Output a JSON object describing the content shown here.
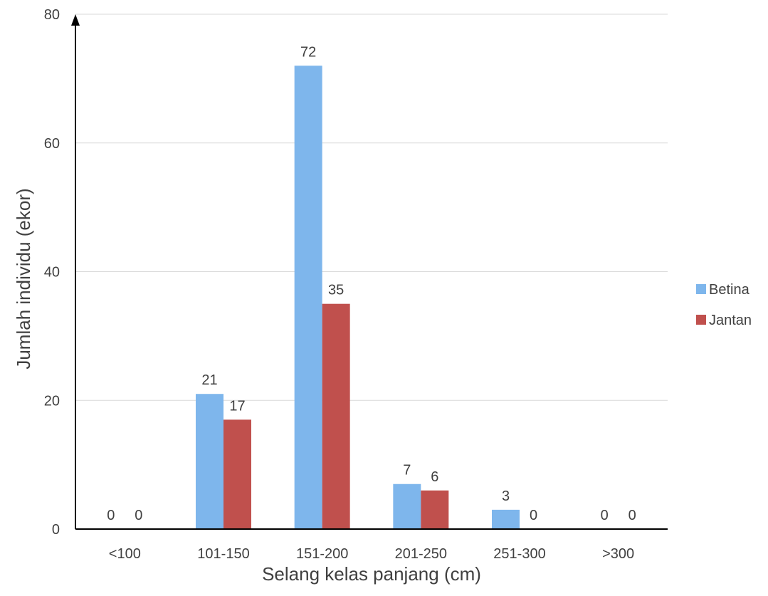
{
  "chart_data": {
    "type": "bar",
    "title": "",
    "xlabel": "Selang kelas panjang (cm)",
    "ylabel": "Jumlah individu (ekor)",
    "categories": [
      "<100",
      "101-150",
      "151-200",
      "201-250",
      "251-300",
      ">300"
    ],
    "series": [
      {
        "name": "Betina",
        "values": [
          0,
          21,
          72,
          7,
          3,
          0
        ],
        "color": "#7EB6EC"
      },
      {
        "name": "Jantan",
        "values": [
          0,
          17,
          35,
          6,
          0,
          0
        ],
        "color": "#C0504D"
      }
    ],
    "ylim": [
      0,
      80
    ],
    "yticks": [
      0,
      20,
      40,
      60,
      80
    ],
    "grid": true,
    "legend_position": "right",
    "data_labels": true
  },
  "colors": {
    "gridline": "#D9D9D9",
    "axis": "#000000",
    "text": "#404040"
  }
}
